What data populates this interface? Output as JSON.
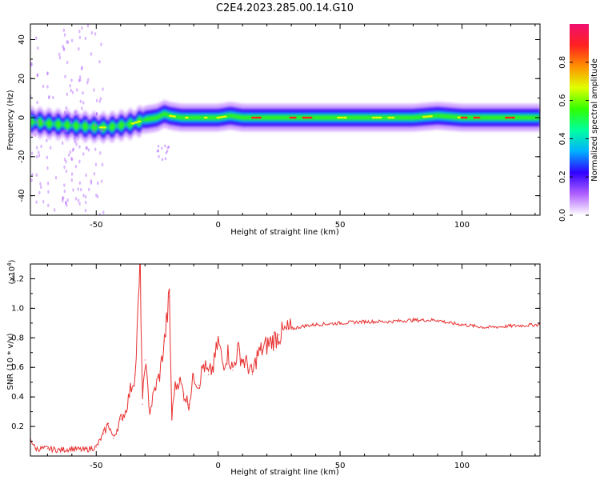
{
  "title": "C2E4.2023.285.00.14.G10",
  "chart_data": [
    {
      "type": "heatmap",
      "xlabel": "Height of straight line (km)",
      "ylabel": "Frequency (Hz)",
      "xlim": [
        -77,
        132
      ],
      "ylim": [
        -50,
        48
      ],
      "x_ticks": [
        -50,
        0,
        50,
        100
      ],
      "y_ticks": [
        -40,
        -20,
        0,
        20,
        40
      ],
      "x_tick_labels": [
        "-50",
        "0",
        "50",
        "100"
      ],
      "y_tick_labels": [
        "-40",
        "-20",
        "0",
        "20",
        "40"
      ],
      "grid": false,
      "description_trace": {
        "x": [
          -77,
          -70,
          -60,
          -50,
          -45,
          -40,
          -35,
          -30,
          -25,
          -22,
          -20,
          -15,
          -10,
          -5,
          0,
          5,
          10,
          20,
          40,
          60,
          80,
          90,
          100,
          120,
          132
        ],
        "center_freq": [
          -2,
          -3,
          -4,
          -5,
          -5,
          -4,
          -3,
          -1,
          0,
          2,
          1,
          0,
          0,
          0,
          0,
          1,
          0,
          0,
          0,
          0,
          0,
          1,
          0,
          0,
          0
        ]
      },
      "colorbar": {
        "label": "Normalized spectral amplitude",
        "range": [
          0,
          1
        ],
        "ticks": [
          0.0,
          0.2,
          0.4,
          0.6,
          0.8
        ],
        "tick_labels": [
          "0.0",
          "0.2",
          "0.4",
          "0.6",
          "0.8"
        ],
        "colors": [
          "#ffffff",
          "#b060ff",
          "#3000ff",
          "#00b0ff",
          "#00ffa0",
          "#30ff00",
          "#e0ff00",
          "#ff9000",
          "#ff2020",
          "#f01070"
        ]
      }
    },
    {
      "type": "line",
      "xlabel": "Height of straight line (km)",
      "ylabel": "SNR (10 * v/v)",
      "y_multiplier": "(x10",
      "y_multiplier_exp": "4",
      "xlim": [
        -77,
        132
      ],
      "ylim": [
        0,
        1.3
      ],
      "x_ticks": [
        -50,
        0,
        50,
        100
      ],
      "y_ticks": [
        0.2,
        0.4,
        0.6,
        0.8,
        1.0,
        1.2
      ],
      "x_tick_labels": [
        "-50",
        "0",
        "50",
        "100"
      ],
      "y_tick_labels": [
        "0.2",
        "0.4",
        "0.6",
        "0.8",
        "1.0",
        "1.2"
      ],
      "grid": false,
      "series": [
        {
          "color": "#e83030",
          "x": [
            -77,
            -75,
            -70,
            -65,
            -60,
            -55,
            -50,
            -47,
            -45,
            -43,
            -40,
            -38,
            -36,
            -34,
            -32,
            -31,
            -30,
            -28,
            -26,
            -24,
            -22,
            -20,
            -19,
            -18,
            -16,
            -14,
            -12,
            -10,
            -8,
            -6,
            -4,
            -2,
            0,
            2,
            4,
            6,
            8,
            10,
            12,
            14,
            16,
            18,
            20,
            25,
            30,
            35,
            40,
            50,
            60,
            70,
            80,
            90,
            95,
            100,
            105,
            110,
            120,
            132
          ],
          "y": [
            0.12,
            0.05,
            0.05,
            0.04,
            0.05,
            0.04,
            0.06,
            0.15,
            0.22,
            0.12,
            0.25,
            0.3,
            0.45,
            0.55,
            1.28,
            0.35,
            0.65,
            0.3,
            0.45,
            0.55,
            0.78,
            1.08,
            0.25,
            0.45,
            0.52,
            0.42,
            0.35,
            0.55,
            0.48,
            0.62,
            0.55,
            0.6,
            0.78,
            0.62,
            0.7,
            0.58,
            0.72,
            0.65,
            0.62,
            0.55,
            0.68,
            0.72,
            0.75,
            0.82,
            0.86,
            0.88,
            0.89,
            0.9,
            0.91,
            0.91,
            0.92,
            0.92,
            0.9,
            0.89,
            0.88,
            0.87,
            0.88,
            0.89
          ]
        }
      ]
    }
  ]
}
